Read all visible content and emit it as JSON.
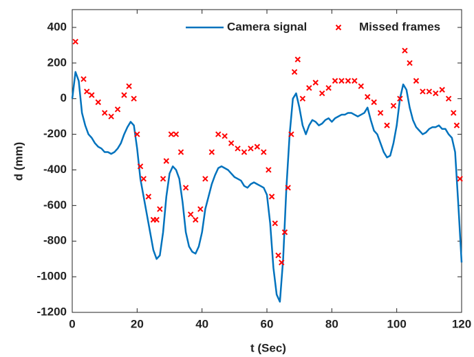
{
  "chart_data": {
    "type": "line_scatter",
    "xlabel": "t (Sec)",
    "ylabel": "d (mm)",
    "xlim": [
      0,
      120
    ],
    "xticks": [
      0,
      20,
      40,
      60,
      80,
      100,
      120
    ],
    "ylim": [
      -1200,
      500
    ],
    "yticks": [
      -1200,
      -1000,
      -800,
      -600,
      -400,
      -200,
      0,
      200,
      400
    ],
    "grid": false,
    "legend": "upper right",
    "series": [
      {
        "name": "Camera signal",
        "kind": "line",
        "color": "#0072bd",
        "x": [
          0,
          1,
          2,
          3,
          4,
          5,
          6,
          7,
          8,
          9,
          10,
          11,
          12,
          13,
          14,
          15,
          16,
          17,
          18,
          19,
          20,
          21,
          22,
          23,
          24,
          25,
          26,
          27,
          28,
          29,
          30,
          31,
          32,
          33,
          34,
          35,
          36,
          37,
          38,
          39,
          40,
          41,
          42,
          43,
          44,
          45,
          46,
          47,
          48,
          49,
          50,
          51,
          52,
          53,
          54,
          55,
          56,
          57,
          58,
          59,
          60,
          61,
          62,
          63,
          64,
          65,
          66,
          67,
          68,
          69,
          70,
          71,
          72,
          73,
          74,
          75,
          76,
          77,
          78,
          79,
          80,
          81,
          82,
          83,
          84,
          85,
          86,
          87,
          88,
          89,
          90,
          91,
          92,
          93,
          94,
          95,
          96,
          97,
          98,
          99,
          100,
          101,
          102,
          103,
          104,
          105,
          106,
          107,
          108,
          109,
          110,
          111,
          112,
          113,
          114,
          115,
          116,
          117,
          118,
          119,
          120
        ],
        "values": [
          0,
          150,
          100,
          -80,
          -150,
          -200,
          -220,
          -250,
          -270,
          -280,
          -300,
          -300,
          -310,
          -300,
          -280,
          -250,
          -200,
          -160,
          -130,
          -150,
          -280,
          -450,
          -550,
          -650,
          -750,
          -850,
          -900,
          -880,
          -750,
          -550,
          -420,
          -380,
          -400,
          -450,
          -580,
          -750,
          -830,
          -860,
          -870,
          -830,
          -750,
          -620,
          -550,
          -480,
          -430,
          -390,
          -380,
          -390,
          -400,
          -420,
          -440,
          -450,
          -460,
          -490,
          -500,
          -480,
          -470,
          -480,
          -490,
          -500,
          -540,
          -700,
          -950,
          -1100,
          -1140,
          -900,
          -500,
          -200,
          0,
          30,
          -50,
          -150,
          -200,
          -150,
          -120,
          -130,
          -150,
          -140,
          -120,
          -110,
          -130,
          -110,
          -100,
          -90,
          -90,
          -80,
          -80,
          -90,
          -100,
          -90,
          -80,
          -50,
          -120,
          -180,
          -200,
          -250,
          -300,
          -330,
          -320,
          -250,
          -150,
          0,
          80,
          50,
          -50,
          -120,
          -160,
          -180,
          -200,
          -190,
          -170,
          -160,
          -160,
          -150,
          -170,
          -170,
          -200,
          -220,
          -300,
          -600,
          -920
        ]
      },
      {
        "name": "Missed frames",
        "kind": "scatter",
        "color": "#ff0000",
        "x": [
          1,
          3.5,
          4.5,
          6,
          8,
          10,
          12,
          14,
          16,
          17.5,
          19,
          20,
          21,
          22,
          23.5,
          25,
          26,
          27,
          28,
          29,
          30.5,
          32,
          33.5,
          35,
          36.5,
          38,
          39.5,
          41,
          43,
          45,
          47,
          49,
          51,
          53,
          55,
          57,
          59,
          60.5,
          61.5,
          62.5,
          63.5,
          64.5,
          65.5,
          66.5,
          67.5,
          68.5,
          69.5,
          71,
          73,
          75,
          77,
          79,
          81,
          83,
          85,
          87,
          89,
          91,
          93,
          95,
          97,
          99,
          101,
          102.5,
          104,
          106,
          108,
          110,
          112,
          114,
          116,
          117.5,
          118.5,
          119.5
        ],
        "values": [
          320,
          110,
          40,
          20,
          -20,
          -80,
          -100,
          -60,
          20,
          70,
          0,
          -200,
          -380,
          -450,
          -550,
          -680,
          -680,
          -620,
          -450,
          -350,
          -200,
          -200,
          -300,
          -500,
          -650,
          -680,
          -620,
          -450,
          -300,
          -200,
          -210,
          -250,
          -280,
          -300,
          -280,
          -270,
          -300,
          -400,
          -550,
          -700,
          -880,
          -920,
          -750,
          -500,
          -200,
          150,
          220,
          0,
          60,
          90,
          30,
          60,
          100,
          100,
          100,
          100,
          70,
          10,
          -20,
          -80,
          -150,
          -40,
          0,
          270,
          200,
          100,
          40,
          40,
          30,
          50,
          0,
          -80,
          -150,
          -450
        ]
      }
    ]
  }
}
